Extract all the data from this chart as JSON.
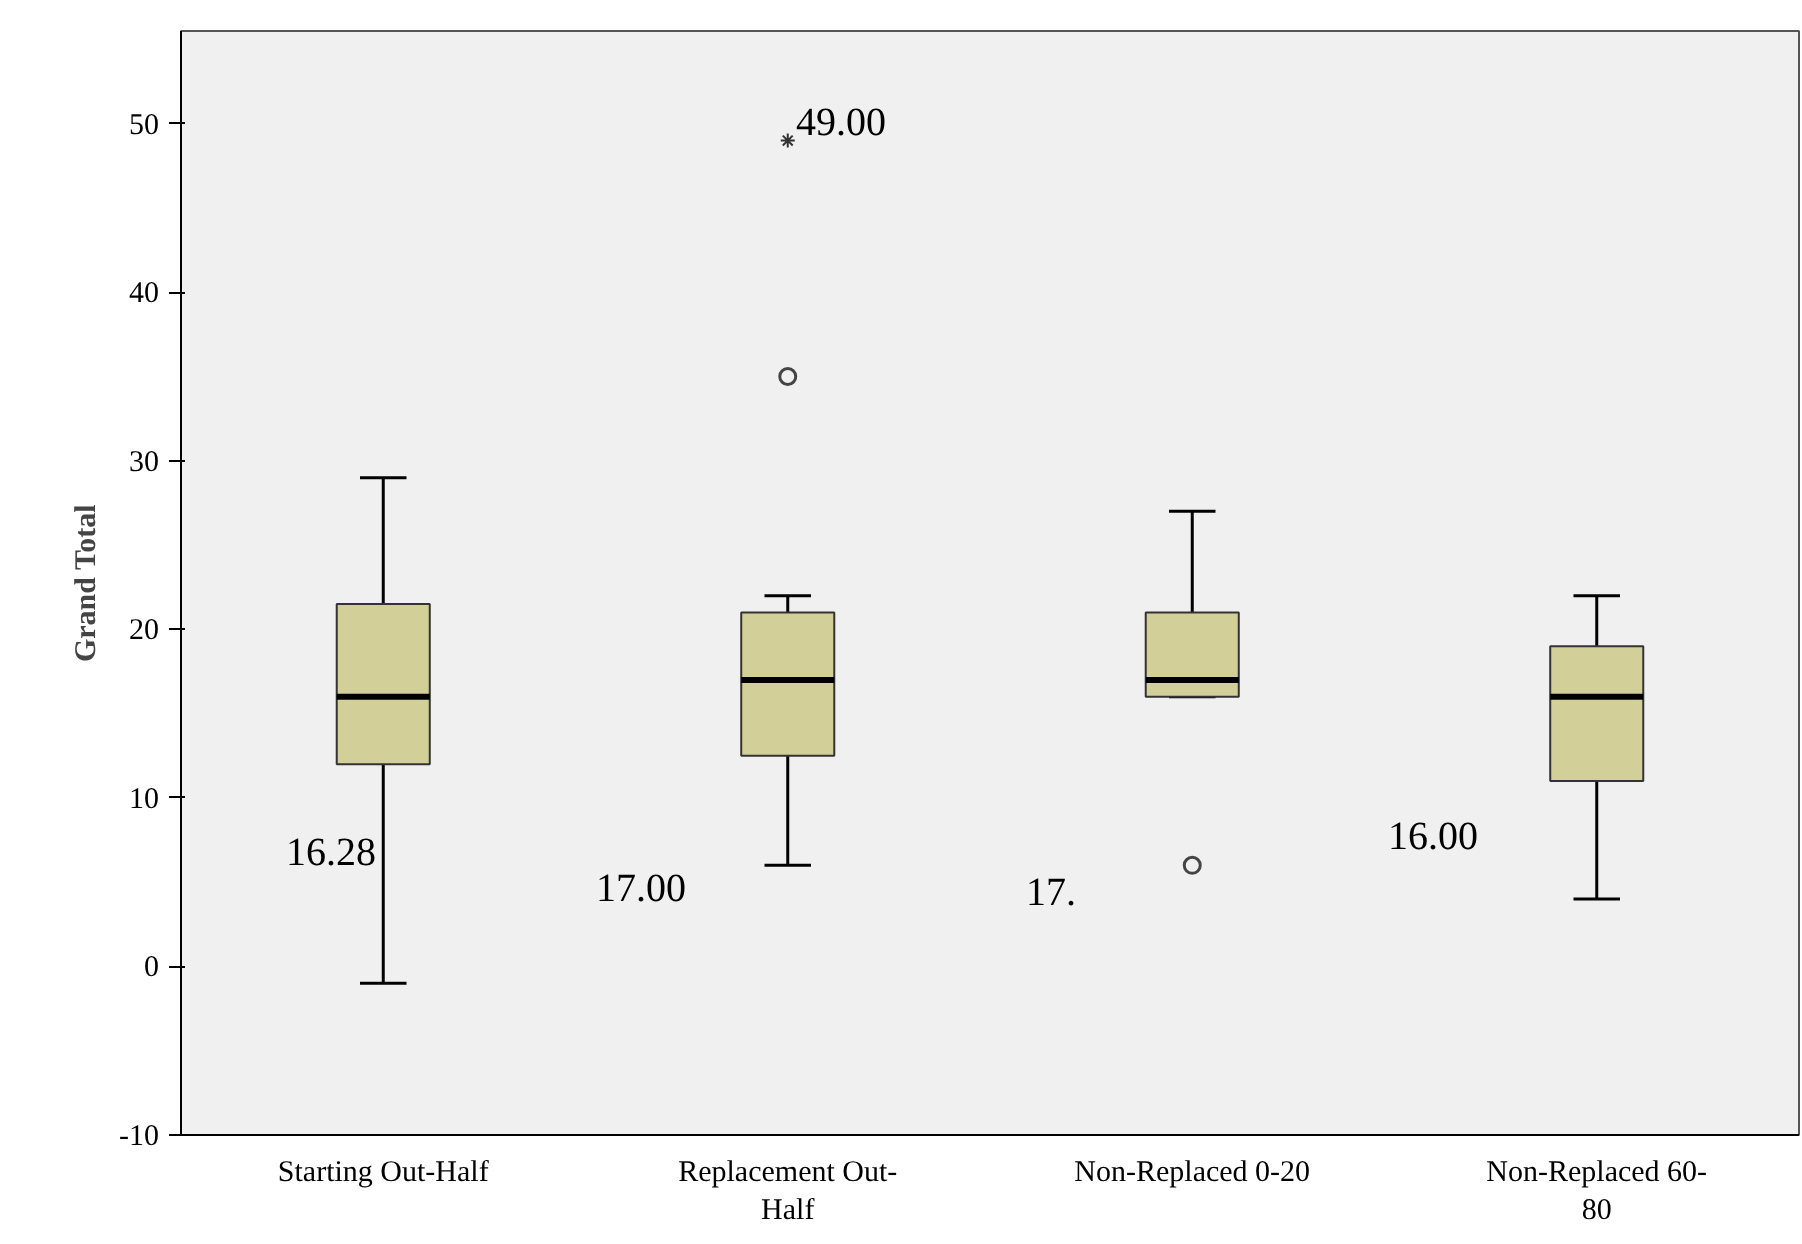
{
  "chart_data": {
    "type": "box",
    "ylabel": "Grand Total",
    "categories": [
      "Starting Out-Half",
      "Replacement Out-\nHalf",
      "Non-Replaced 0-20",
      "Non-Replaced 60-\n80"
    ],
    "boxes": [
      {
        "low": -1,
        "q1": 12,
        "median": 16,
        "q3": 21.5,
        "high": 29
      },
      {
        "low": 6,
        "q1": 12.5,
        "median": 17,
        "q3": 21,
        "high": 22,
        "outliers": [
          35,
          49
        ]
      },
      {
        "low": 16,
        "q1": 16,
        "median": 17,
        "q3": 21,
        "high": 27,
        "outliers": [
          6
        ]
      },
      {
        "low": 4,
        "q1": 11,
        "median": 16,
        "q3": 19,
        "high": 22
      }
    ],
    "color": "#d3cf98",
    "ylim": [
      -10,
      55.5
    ],
    "yticks": [
      -10,
      0,
      10,
      20,
      30,
      40,
      50
    ],
    "grid": false,
    "annotations": [
      "16.28",
      "17.00",
      "49.00",
      "17.",
      "16.00"
    ]
  }
}
